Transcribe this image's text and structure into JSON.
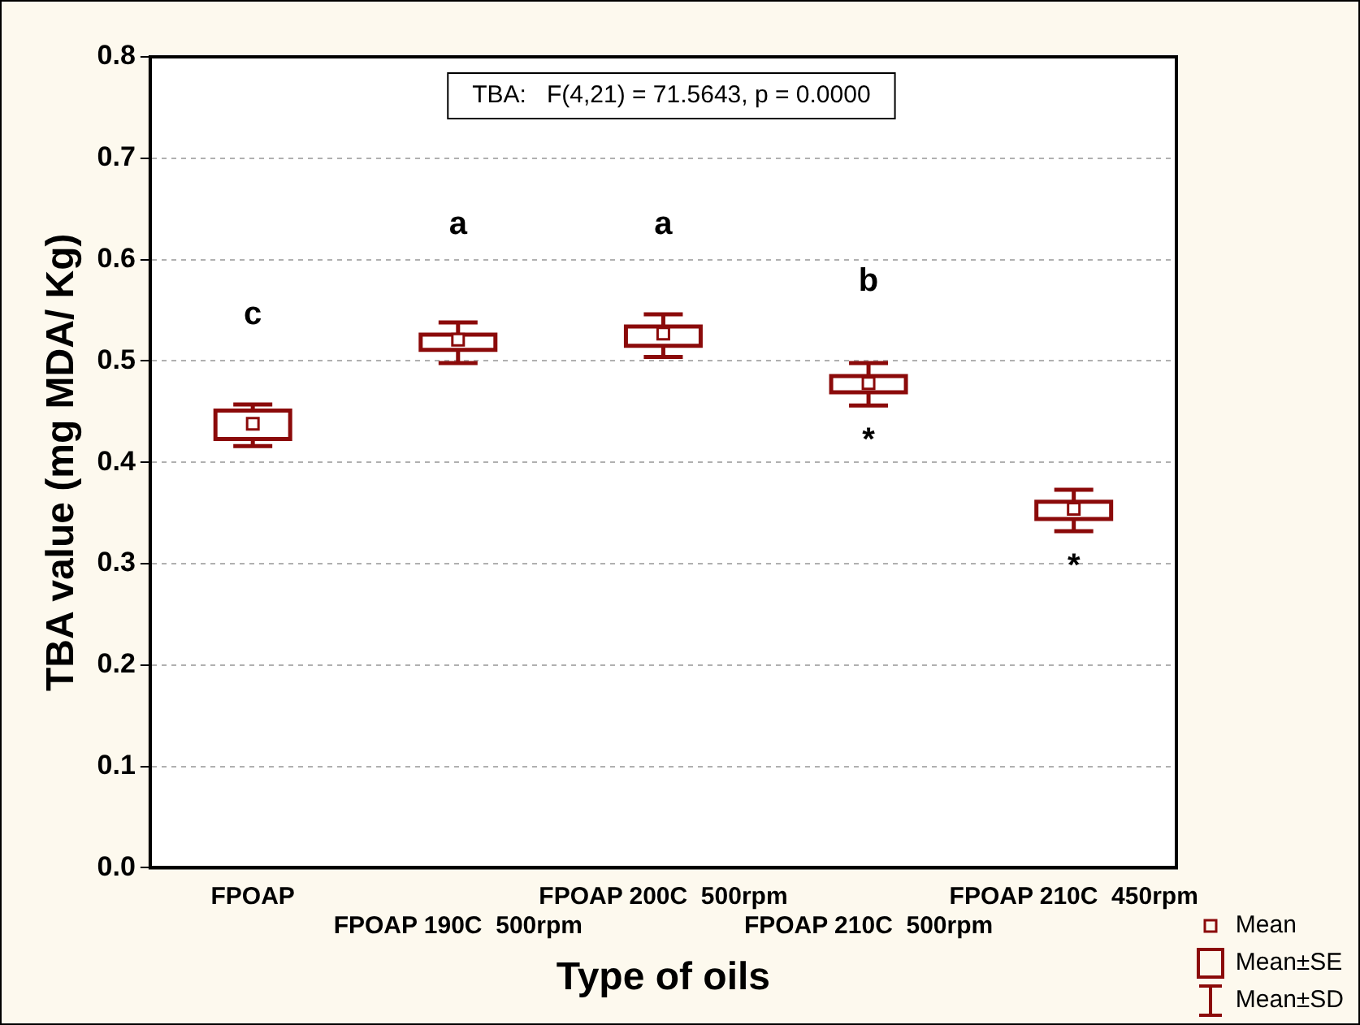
{
  "chart_data": {
    "type": "box",
    "xlabel": "Type of oils",
    "ylabel": "TBA value (mg MDA/ Kg)",
    "categories": [
      "FPOAP",
      "FPOAP 190C  500rpm",
      "FPOAP 200C  500rpm",
      "FPOAP 210C  500rpm",
      "FPOAP 210C  450rpm"
    ],
    "color": "#8b0a0a",
    "boxes": [
      {
        "low": 0.416,
        "q1": 0.423,
        "median": 0.438,
        "q3": 0.451,
        "high": 0.457
      },
      {
        "low": 0.498,
        "q1": 0.511,
        "median": 0.521,
        "q3": 0.526,
        "high": 0.538
      },
      {
        "low": 0.504,
        "q1": 0.515,
        "median": 0.527,
        "q3": 0.534,
        "high": 0.546
      },
      {
        "low": 0.456,
        "q1": 0.469,
        "median": 0.478,
        "q3": 0.485,
        "high": 0.498
      },
      {
        "low": 0.332,
        "q1": 0.344,
        "median": 0.354,
        "q3": 0.361,
        "high": 0.373
      }
    ],
    "ylim": [
      0,
      0.8
    ],
    "yticks": [
      {
        "value": 0,
        "label": "0.0"
      },
      {
        "value": 0.1,
        "label": "0.1"
      },
      {
        "value": 0.2,
        "label": "0.2"
      },
      {
        "value": 0.3,
        "label": "0.3"
      },
      {
        "value": 0.4,
        "label": "0.4"
      },
      {
        "value": 0.5,
        "label": "0.5"
      },
      {
        "value": 0.6,
        "label": "0.6"
      },
      {
        "value": 0.7,
        "label": "0.7"
      },
      {
        "value": 0.8,
        "label": "0.8"
      }
    ],
    "grid": "y",
    "annotations": [
      "TBA:   F(4,21) = 71.5643, p = 0.0000",
      "Mean",
      "Mean±SE",
      "Mean±SD",
      "c",
      "a",
      "a",
      "b",
      "*",
      "*"
    ]
  }
}
